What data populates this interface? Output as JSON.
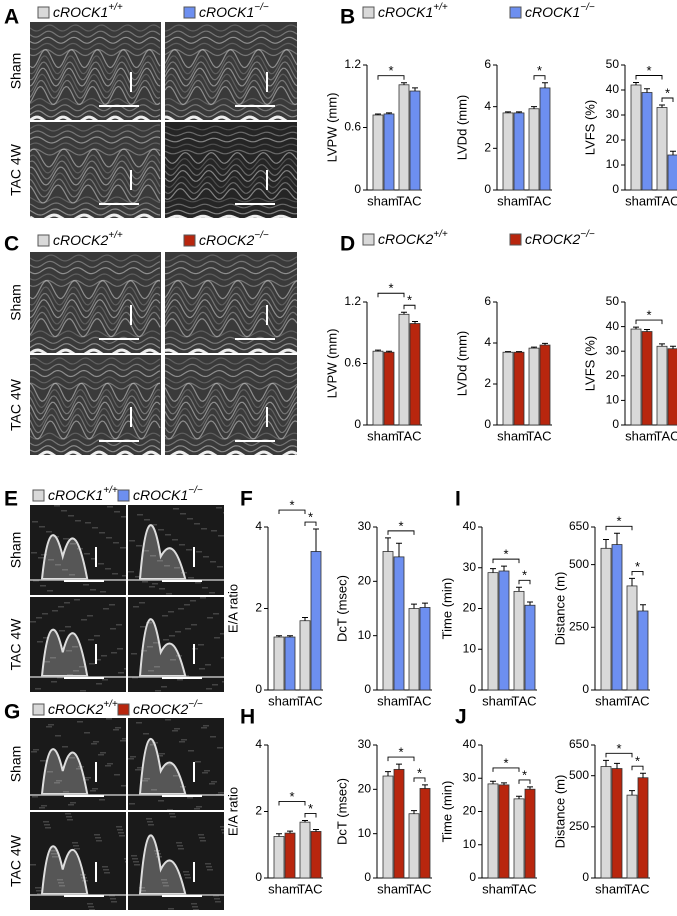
{
  "image_panels": [
    {
      "label": "A",
      "legend": [
        "cROCK1+/+",
        "cROCK1−/−"
      ],
      "rows": [
        "Sham",
        "TAC 4W"
      ]
    },
    {
      "label": "C",
      "legend": [
        "cROCK2+/+",
        "cROCK2−/−"
      ],
      "rows": [
        "Sham",
        "TAC 4W"
      ]
    },
    {
      "label": "E",
      "legend": [
        "cROCK1+/+",
        "cROCK1−/−"
      ],
      "rows": [
        "Sham",
        "TAC 4W"
      ]
    },
    {
      "label": "G",
      "legend": [
        "cROCK2+/+",
        "cROCK2−/−"
      ],
      "rows": [
        "Sham",
        "TAC 4W"
      ]
    }
  ],
  "chart_panels": [
    {
      "label": "B",
      "chart_data": [
        {
          "type": "bar",
          "ylabel": "LVPW (mm)",
          "categories": [
            "sham",
            "TAC"
          ],
          "ylim": [
            0,
            1.2
          ],
          "yticks": [
            0,
            0.6,
            1.2
          ],
          "series": [
            {
              "name": "cROCK1+/+",
              "color": "#d9d9d9",
              "values": [
                0.72,
                1.01
              ],
              "errors": [
                0.01,
                0.02
              ]
            },
            {
              "name": "cROCK1−/−",
              "color": "#6d8ff0",
              "values": [
                0.73,
                0.95
              ],
              "errors": [
                0.01,
                0.03
              ]
            }
          ],
          "annotations": [
            "*"
          ]
        },
        {
          "type": "bar",
          "ylabel": "LVDd (mm)",
          "categories": [
            "sham",
            "TAC"
          ],
          "ylim": [
            0,
            6
          ],
          "yticks": [
            0,
            2,
            4,
            6
          ],
          "series": [
            {
              "color": "#d9d9d9",
              "values": [
                3.7,
                3.9
              ],
              "errors": [
                0.05,
                0.1
              ]
            },
            {
              "color": "#6d8ff0",
              "values": [
                3.7,
                4.9
              ],
              "errors": [
                0.05,
                0.25
              ]
            }
          ],
          "annotations": [
            "*"
          ]
        },
        {
          "type": "bar",
          "ylabel": "LVFS (%)",
          "categories": [
            "sham",
            "TAC"
          ],
          "ylim": [
            0,
            50
          ],
          "yticks": [
            0,
            10,
            20,
            30,
            40,
            50
          ],
          "series": [
            {
              "color": "#d9d9d9",
              "values": [
                42,
                33
              ],
              "errors": [
                1,
                1
              ]
            },
            {
              "color": "#6d8ff0",
              "values": [
                39,
                14
              ],
              "errors": [
                1.5,
                1.5
              ]
            }
          ],
          "annotations": [
            "*",
            "*"
          ]
        }
      ]
    },
    {
      "label": "D",
      "chart_data": [
        {
          "type": "bar",
          "ylabel": "LVPW (mm)",
          "categories": [
            "sham",
            "TAC"
          ],
          "ylim": [
            0,
            1.2
          ],
          "yticks": [
            0,
            0.6,
            1.2
          ],
          "series": [
            {
              "name": "cROCK2+/+",
              "color": "#d9d9d9",
              "values": [
                0.72,
                1.08
              ],
              "errors": [
                0.01,
                0.02
              ]
            },
            {
              "name": "cROCK2−/−",
              "color": "#b8260e",
              "values": [
                0.71,
                0.99
              ],
              "errors": [
                0.01,
                0.02
              ]
            }
          ],
          "annotations": [
            "*",
            "*"
          ]
        },
        {
          "type": "bar",
          "ylabel": "LVDd (mm)",
          "categories": [
            "sham",
            "TAC"
          ],
          "ylim": [
            0,
            6
          ],
          "yticks": [
            0,
            2,
            4,
            6
          ],
          "series": [
            {
              "color": "#d9d9d9",
              "values": [
                3.55,
                3.75
              ],
              "errors": [
                0.03,
                0.05
              ]
            },
            {
              "color": "#b8260e",
              "values": [
                3.55,
                3.9
              ],
              "errors": [
                0.03,
                0.08
              ]
            }
          ],
          "annotations": []
        },
        {
          "type": "bar",
          "ylabel": "LVFS (%)",
          "categories": [
            "sham",
            "TAC"
          ],
          "ylim": [
            0,
            50
          ],
          "yticks": [
            0,
            10,
            20,
            30,
            40,
            50
          ],
          "series": [
            {
              "color": "#d9d9d9",
              "values": [
                39,
                32
              ],
              "errors": [
                0.8,
                1
              ]
            },
            {
              "color": "#b8260e",
              "values": [
                38,
                31
              ],
              "errors": [
                0.8,
                1
              ]
            }
          ],
          "annotations": [
            "*"
          ]
        }
      ]
    },
    {
      "label": "F",
      "chart_data": [
        {
          "type": "bar",
          "ylabel": "E/A ratio",
          "categories": [
            "sham",
            "TAC"
          ],
          "ylim": [
            0,
            4
          ],
          "yticks": [
            0,
            2,
            4
          ],
          "series": [
            {
              "color": "#d9d9d9",
              "values": [
                1.3,
                1.7
              ],
              "errors": [
                0.03,
                0.08
              ]
            },
            {
              "color": "#6d8ff0",
              "values": [
                1.3,
                3.4
              ],
              "errors": [
                0.03,
                0.55
              ]
            }
          ],
          "annotations": [
            "*",
            "*"
          ]
        },
        {
          "type": "bar",
          "ylabel": "DcT (msec)",
          "categories": [
            "sham",
            "TAC"
          ],
          "ylim": [
            0,
            30
          ],
          "yticks": [
            0,
            10,
            20,
            30
          ],
          "series": [
            {
              "color": "#d9d9d9",
              "values": [
                25.5,
                15
              ],
              "errors": [
                2.5,
                0.8
              ]
            },
            {
              "color": "#6d8ff0",
              "values": [
                24.5,
                15.2
              ],
              "errors": [
                2.5,
                0.8
              ]
            }
          ],
          "annotations": [
            "*"
          ]
        }
      ]
    },
    {
      "label": "I",
      "chart_data": [
        {
          "type": "bar",
          "ylabel": "Time (min)",
          "categories": [
            "sham",
            "TAC"
          ],
          "ylim": [
            0,
            40
          ],
          "yticks": [
            0,
            10,
            20,
            30,
            40
          ],
          "series": [
            {
              "color": "#d9d9d9",
              "values": [
                28.8,
                24.2
              ],
              "errors": [
                1,
                1
              ]
            },
            {
              "color": "#6d8ff0",
              "values": [
                29.2,
                20.8
              ],
              "errors": [
                1.2,
                0.8
              ]
            }
          ],
          "annotations": [
            "*",
            "*"
          ]
        },
        {
          "type": "bar",
          "ylabel": "Distance (m)",
          "categories": [
            "sham",
            "TAC"
          ],
          "ylim": [
            0,
            650
          ],
          "yticks": [
            0,
            250,
            500,
            650
          ],
          "series": [
            {
              "color": "#d9d9d9",
              "values": [
                565,
                415
              ],
              "errors": [
                35,
                30
              ]
            },
            {
              "color": "#6d8ff0",
              "values": [
                580,
                315
              ],
              "errors": [
                45,
                25
              ]
            }
          ],
          "annotations": [
            "*",
            "*"
          ]
        }
      ]
    },
    {
      "label": "H",
      "chart_data": [
        {
          "type": "bar",
          "ylabel": "E/A ratio",
          "categories": [
            "sham",
            "TAC"
          ],
          "ylim": [
            0,
            4
          ],
          "yticks": [
            0,
            2,
            4
          ],
          "series": [
            {
              "color": "#d9d9d9",
              "values": [
                1.25,
                1.68
              ],
              "errors": [
                0.08,
                0.05
              ]
            },
            {
              "color": "#b8260e",
              "values": [
                1.35,
                1.4
              ],
              "errors": [
                0.06,
                0.06
              ]
            }
          ],
          "annotations": [
            "*",
            "*"
          ]
        },
        {
          "type": "bar",
          "ylabel": "DcT (msec)",
          "categories": [
            "sham",
            "TAC"
          ],
          "ylim": [
            0,
            30
          ],
          "yticks": [
            0,
            10,
            20,
            30
          ],
          "series": [
            {
              "color": "#d9d9d9",
              "values": [
                23,
                14.5
              ],
              "errors": [
                1,
                0.7
              ]
            },
            {
              "color": "#b8260e",
              "values": [
                24.5,
                20.2
              ],
              "errors": [
                1.2,
                0.8
              ]
            }
          ],
          "annotations": [
            "*",
            "*"
          ]
        }
      ]
    },
    {
      "label": "J",
      "chart_data": [
        {
          "type": "bar",
          "ylabel": "Time (min)",
          "categories": [
            "sham",
            "TAC"
          ],
          "ylim": [
            0,
            40
          ],
          "yticks": [
            0,
            10,
            20,
            30,
            40
          ],
          "series": [
            {
              "color": "#d9d9d9",
              "values": [
                28.3,
                23.8
              ],
              "errors": [
                0.8,
                0.8
              ]
            },
            {
              "color": "#b8260e",
              "values": [
                28,
                26.7
              ],
              "errors": [
                0.6,
                0.7
              ]
            }
          ],
          "annotations": [
            "*",
            "*"
          ]
        },
        {
          "type": "bar",
          "ylabel": "Distance (m)",
          "categories": [
            "sham",
            "TAC"
          ],
          "ylim": [
            0,
            650
          ],
          "yticks": [
            0,
            250,
            500,
            650
          ],
          "series": [
            {
              "color": "#d9d9d9",
              "values": [
                545,
                405
              ],
              "errors": [
                30,
                22
              ]
            },
            {
              "color": "#b8260e",
              "values": [
                535,
                490
              ],
              "errors": [
                25,
                22
              ]
            }
          ],
          "annotations": [
            "*",
            "*"
          ]
        }
      ]
    }
  ]
}
